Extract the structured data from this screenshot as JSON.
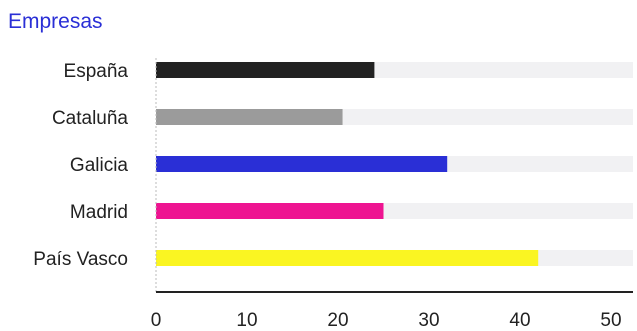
{
  "chart_data": {
    "type": "bar",
    "orientation": "horizontal",
    "title": "Empresas",
    "categories": [
      "España",
      "Cataluña",
      "Galicia",
      "Madrid",
      "País Vasco"
    ],
    "values": [
      24,
      20.5,
      32,
      25,
      42
    ],
    "xlim": [
      0,
      52
    ],
    "xticks": [
      0,
      10,
      20,
      30,
      40,
      50
    ],
    "bar_colors": [
      "#222222",
      "#9b9b9b",
      "#2a2fd6",
      "#ee1491",
      "#faf522"
    ],
    "track_color": "#f1f1f3",
    "grid": false,
    "legend": "none"
  }
}
